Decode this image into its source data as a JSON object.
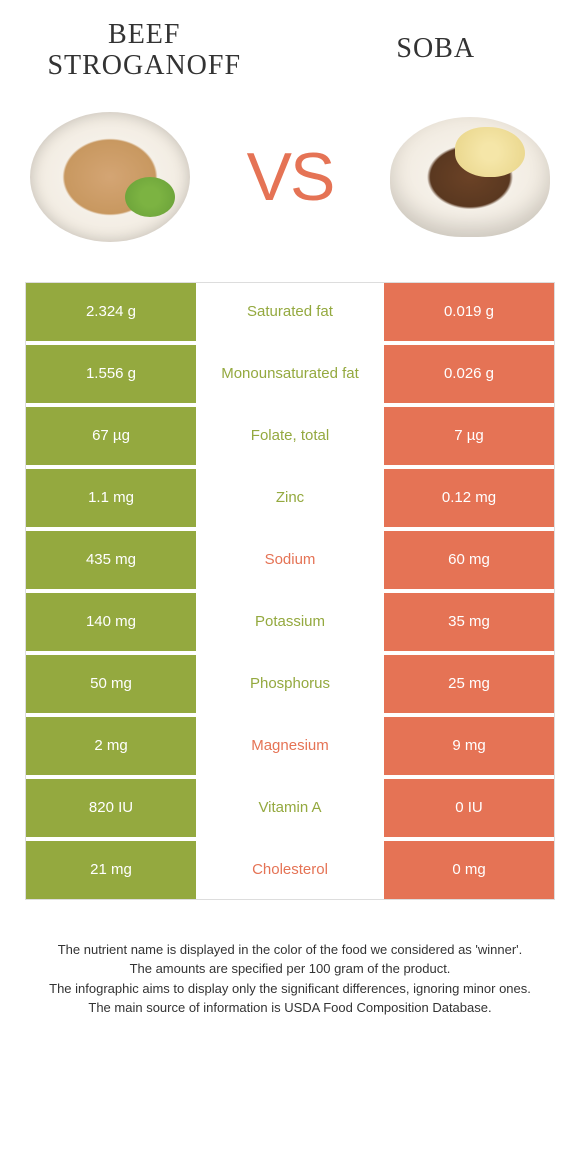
{
  "header": {
    "left_title": "Beef Stroganoff",
    "right_title": "Soba",
    "vs_label": "VS"
  },
  "colors": {
    "left_bar": "#94a93f",
    "right_bar": "#e57355",
    "left_text": "#94a93f",
    "right_text": "#e57355",
    "row_gap_bg": "#ffffff"
  },
  "rows": [
    {
      "left": "2.324 g",
      "label": "Saturated fat",
      "right": "0.019 g",
      "winner": "left"
    },
    {
      "left": "1.556 g",
      "label": "Monounsaturated fat",
      "right": "0.026 g",
      "winner": "left"
    },
    {
      "left": "67 µg",
      "label": "Folate, total",
      "right": "7 µg",
      "winner": "left"
    },
    {
      "left": "1.1 mg",
      "label": "Zinc",
      "right": "0.12 mg",
      "winner": "left"
    },
    {
      "left": "435 mg",
      "label": "Sodium",
      "right": "60 mg",
      "winner": "right"
    },
    {
      "left": "140 mg",
      "label": "Potassium",
      "right": "35 mg",
      "winner": "left"
    },
    {
      "left": "50 mg",
      "label": "Phosphorus",
      "right": "25 mg",
      "winner": "left"
    },
    {
      "left": "2 mg",
      "label": "Magnesium",
      "right": "9 mg",
      "winner": "right"
    },
    {
      "left": "820 IU",
      "label": "Vitamin A",
      "right": "0 IU",
      "winner": "left"
    },
    {
      "left": "21 mg",
      "label": "Cholesterol",
      "right": "0 mg",
      "winner": "right"
    }
  ],
  "footer": {
    "line1": "The nutrient name is displayed in the color of the food we considered as 'winner'.",
    "line2": "The amounts are specified per 100 gram of the product.",
    "line3": "The infographic aims to display only the significant differences, ignoring minor ones.",
    "line4": "The main source of information is USDA Food Composition Database."
  }
}
